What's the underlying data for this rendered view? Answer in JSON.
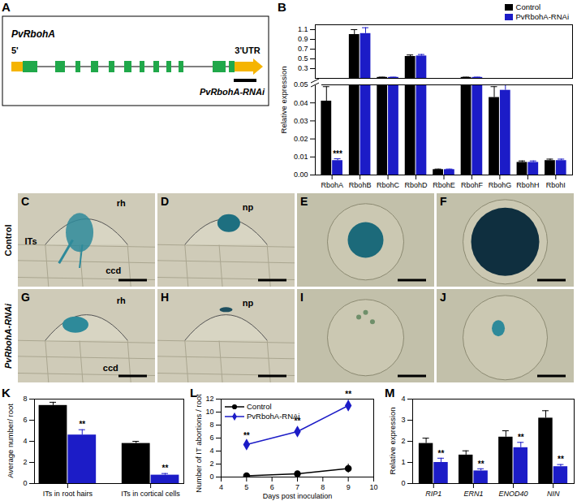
{
  "diagram": {
    "panel": "A",
    "gene": "PvRbohA",
    "five_prime": "5'",
    "three_prime": "3'UTR",
    "construct": "PvRbohA-RNAi"
  },
  "micrographs": {
    "rows": [
      {
        "label": "Control",
        "panels": [
          {
            "panel": "C",
            "labels": [
              "rh",
              "ITs",
              "ccd"
            ]
          },
          {
            "panel": "D",
            "labels": [
              "np"
            ]
          },
          {
            "panel": "E"
          },
          {
            "panel": "F"
          }
        ]
      },
      {
        "label": "PvRbohA-RNAi",
        "panels": [
          {
            "panel": "G",
            "labels": [
              "rh",
              "ccd"
            ]
          },
          {
            "panel": "H",
            "labels": [
              "np"
            ]
          },
          {
            "panel": "I"
          },
          {
            "panel": "J"
          }
        ]
      }
    ]
  },
  "chart_data": [
    {
      "panel": "B",
      "type": "bar",
      "ylabel": "Relative expression",
      "categories": [
        "RbohA",
        "RbohB",
        "RbohC",
        "RbohD",
        "RbohE",
        "RbohF",
        "RbohG",
        "RbohH",
        "RbohI"
      ],
      "series": [
        {
          "name": "Control",
          "color": "#000000",
          "values": [
            0.041,
            1.0,
            0.12,
            0.55,
            0.003,
            0.12,
            0.043,
            0.007,
            0.008
          ],
          "errors": [
            0.008,
            0.1,
            0.005,
            0.03,
            0.0003,
            0.005,
            0.006,
            0.0008,
            0.0008
          ]
        },
        {
          "name": "PvRbohA-RNAi",
          "color": "#1c1cc7",
          "values": [
            0.008,
            1.02,
            0.12,
            0.56,
            0.003,
            0.12,
            0.047,
            0.007,
            0.008
          ],
          "errors": [
            0.001,
            0.12,
            0.005,
            0.03,
            0.0003,
            0.005,
            0.003,
            0.0008,
            0.0008
          ],
          "annotations": [
            "***",
            null,
            null,
            null,
            null,
            null,
            null,
            null,
            null
          ]
        }
      ],
      "ylim": [
        0,
        1.2
      ],
      "y_break": [
        0.05,
        0.1
      ],
      "yticks": [
        {
          "value": 0,
          "label": "0.00"
        },
        0.01,
        0.02,
        0.03,
        0.04,
        0.05,
        0.3,
        0.5,
        0.7,
        0.9,
        1.1
      ],
      "legend": "top-right"
    },
    {
      "panel": "K",
      "type": "bar",
      "ylabel": "Average number/ root",
      "categories": [
        "ITs in root hairs",
        "ITs in cortical cells"
      ],
      "series": [
        {
          "name": "Control",
          "color": "#000000",
          "values": [
            7.4,
            3.8
          ],
          "errors": [
            0.3,
            0.2
          ]
        },
        {
          "name": "PvRbohA-RNAi",
          "color": "#1c1cc7",
          "values": [
            4.6,
            0.8
          ],
          "errors": [
            0.5,
            0.15
          ],
          "annotations": [
            "**",
            "**"
          ]
        }
      ],
      "ylim": [
        0,
        8
      ],
      "yticks": [
        0,
        2,
        4,
        6,
        8
      ]
    },
    {
      "panel": "L",
      "type": "line",
      "xlabel": "Days post inoculation",
      "ylabel": "Number of IT abortions / root",
      "x": [
        5,
        7,
        9
      ],
      "series": [
        {
          "name": "Control",
          "color": "#000000",
          "marker": "circle",
          "values": [
            0.2,
            0.5,
            1.3
          ],
          "errors": [
            0.1,
            0.1,
            0.7
          ]
        },
        {
          "name": "PvRbohA-RNAi",
          "color": "#1c1cc7",
          "marker": "diamond",
          "values": [
            5.0,
            7.0,
            11.0
          ],
          "errors": [
            0.5,
            0.7,
            0.8
          ],
          "annotations": [
            "**",
            "**",
            "**"
          ]
        }
      ],
      "xlim": [
        4,
        10
      ],
      "xticks": [
        4,
        5,
        6,
        7,
        8,
        9,
        10
      ],
      "ylim": [
        0,
        12
      ],
      "yticks": [
        0,
        2,
        4,
        6,
        8,
        10,
        12
      ],
      "legend": "top-left"
    },
    {
      "panel": "M",
      "type": "bar",
      "ylabel": "Relative expression",
      "categories": [
        "RIP1",
        "ERN1",
        "ENOD40",
        "NIN"
      ],
      "series": [
        {
          "name": "Control",
          "color": "#000000",
          "values": [
            1.9,
            1.35,
            2.2,
            3.1
          ],
          "errors": [
            0.25,
            0.2,
            0.3,
            0.35
          ]
        },
        {
          "name": "PvRbohA-RNAi",
          "color": "#1c1cc7",
          "values": [
            1.0,
            0.6,
            1.7,
            0.8
          ],
          "errors": [
            0.2,
            0.1,
            0.25,
            0.1
          ],
          "annotations": [
            "**",
            "**",
            "**",
            "**"
          ]
        }
      ],
      "ylim": [
        0,
        4
      ],
      "yticks": [
        0,
        1,
        2,
        3,
        4
      ]
    }
  ]
}
